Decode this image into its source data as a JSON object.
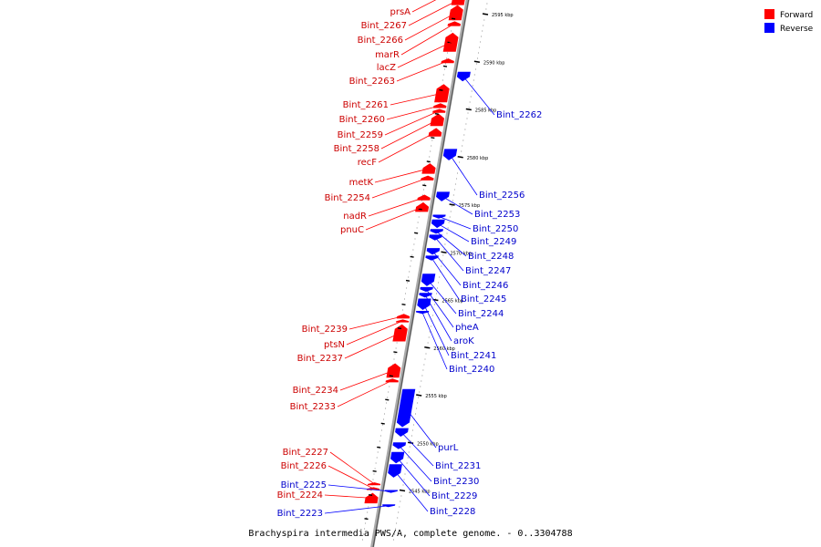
{
  "title": "Brachyspira intermedia PWS/A, complete genome. - 0..3304788",
  "legend": [
    {
      "label": "Forward",
      "color": "#ff0000"
    },
    {
      "label": "Reverse",
      "color": "#0000ff"
    }
  ],
  "colors": {
    "forward": "#ff0000",
    "reverse": "#0000ff",
    "backbone": "#999999"
  },
  "ticks": [
    {
      "kbp": 2595,
      "label": "2595 kbp"
    },
    {
      "kbp": 2590,
      "label": "2590 kbp"
    },
    {
      "kbp": 2585,
      "label": "2585 kbp"
    },
    {
      "kbp": 2580,
      "label": "2580 kbp"
    },
    {
      "kbp": 2575,
      "label": "2575 kbp"
    },
    {
      "kbp": 2570,
      "label": "2570 kbp"
    },
    {
      "kbp": 2565,
      "label": "2565 kbp"
    },
    {
      "kbp": 2560,
      "label": "2560 kbp"
    },
    {
      "kbp": 2555,
      "label": "2555 kbp"
    },
    {
      "kbp": 2550,
      "label": "2550 kbp"
    },
    {
      "kbp": 2545,
      "label": "2545 kbp"
    }
  ],
  "forward_genes": [
    {
      "name": "prsA",
      "start": 2598.6,
      "end": 2597.0
    },
    {
      "name": "Bint_2267",
      "start": 2597.0,
      "end": 2595.9
    },
    {
      "name": "Bint_2266",
      "start": 2595.9,
      "end": 2594.3
    },
    {
      "name": "marR",
      "start": 2594.2,
      "end": 2593.7
    },
    {
      "name": "lacZ",
      "start": 2593.0,
      "end": 2591.0
    },
    {
      "name": "Bint_2263",
      "start": 2590.3,
      "end": 2589.8
    },
    {
      "name": "Bint_2261",
      "start": 2587.6,
      "end": 2585.7
    },
    {
      "name": "Bint_2260",
      "start": 2585.6,
      "end": 2585.1
    },
    {
      "name": "Bint_2259",
      "start": 2585.0,
      "end": 2584.6
    },
    {
      "name": "Bint_2258",
      "start": 2584.5,
      "end": 2583.2
    },
    {
      "name": "recF",
      "start": 2583.0,
      "end": 2582.1
    },
    {
      "name": "metK",
      "start": 2579.3,
      "end": 2578.2
    },
    {
      "name": "Bint_2254",
      "start": 2578.0,
      "end": 2577.5
    },
    {
      "name": "nadR",
      "start": 2576.0,
      "end": 2575.4
    },
    {
      "name": "pnuC",
      "start": 2575.2,
      "end": 2574.2
    },
    {
      "name": "Bint_2239",
      "start": 2563.5,
      "end": 2563.0
    },
    {
      "name": "ptsN",
      "start": 2562.9,
      "end": 2562.6
    },
    {
      "name": "Bint_2237",
      "start": 2562.4,
      "end": 2560.6
    },
    {
      "name": "Bint_2234",
      "start": 2558.3,
      "end": 2556.8
    },
    {
      "name": "Bint_2233",
      "start": 2556.7,
      "end": 2556.3
    },
    {
      "name": "Bint_2227",
      "start": 2545.8,
      "end": 2545.5
    },
    {
      "name": "Bint_2226",
      "start": 2545.3,
      "end": 2545.0
    },
    {
      "name": "Bint_2224",
      "start": 2544.7,
      "end": 2543.6
    }
  ],
  "reverse_genes": [
    {
      "name": "Bint_2262",
      "start": 2588.9,
      "end": 2587.9
    },
    {
      "name": "Bint_2256",
      "start": 2580.8,
      "end": 2579.6
    },
    {
      "name": "Bint_2253",
      "start": 2576.3,
      "end": 2575.3
    },
    {
      "name": "Bint_2250",
      "start": 2573.9,
      "end": 2573.5
    },
    {
      "name": "Bint_2249",
      "start": 2573.4,
      "end": 2572.5
    },
    {
      "name": "Bint_2248",
      "start": 2572.4,
      "end": 2571.9
    },
    {
      "name": "Bint_2247",
      "start": 2571.8,
      "end": 2571.2
    },
    {
      "name": "Bint_2246",
      "start": 2570.4,
      "end": 2569.7
    },
    {
      "name": "Bint_2245",
      "start": 2569.6,
      "end": 2569.1
    },
    {
      "name": "Bint_2244",
      "start": 2567.7,
      "end": 2566.4
    },
    {
      "name": "pheA",
      "start": 2566.3,
      "end": 2565.8
    },
    {
      "name": "aroK",
      "start": 2565.7,
      "end": 2565.2
    },
    {
      "name": "Bint_2241",
      "start": 2565.1,
      "end": 2563.9
    },
    {
      "name": "Bint_2240",
      "start": 2563.8,
      "end": 2563.5
    },
    {
      "name": "purL",
      "start": 2555.6,
      "end": 2551.6
    },
    {
      "name": "Bint_2231",
      "start": 2551.5,
      "end": 2550.6
    },
    {
      "name": "Bint_2230",
      "start": 2550.0,
      "end": 2549.3
    },
    {
      "name": "Bint_2229",
      "start": 2549.0,
      "end": 2547.8
    },
    {
      "name": "Bint_2228",
      "start": 2547.7,
      "end": 2546.3
    },
    {
      "name": "Bint_2225",
      "start": 2545.0,
      "end": 2544.7
    },
    {
      "name": "Bint_2223",
      "start": 2543.5,
      "end": 2543.2
    }
  ]
}
